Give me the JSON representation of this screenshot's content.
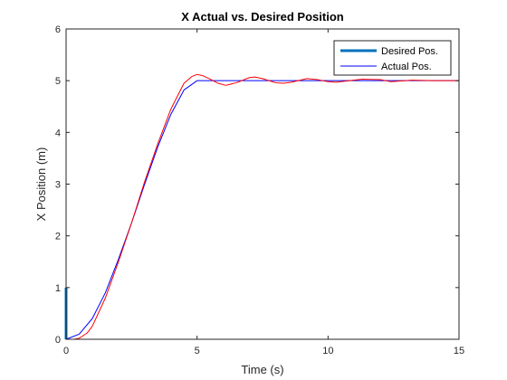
{
  "chart_data": {
    "type": "line",
    "title": "X Actual vs. Desired Position",
    "xlabel": "Time (s)",
    "ylabel": "X Position (m)",
    "xlim": [
      0,
      15
    ],
    "ylim": [
      0,
      6
    ],
    "xticks": [
      0,
      5,
      10,
      15
    ],
    "yticks": [
      0,
      1,
      2,
      3,
      4,
      5,
      6
    ],
    "grid": false,
    "legend_position": "top-right",
    "series": [
      {
        "name": "Desired Pos.",
        "color": "#0072BD",
        "x": [
          0,
          0
        ],
        "y": [
          0,
          1
        ]
      },
      {
        "name": "Actual Pos.",
        "color": "#0000FF",
        "x": [
          0,
          0.5,
          1,
          1.5,
          2,
          2.5,
          3,
          3.5,
          4,
          4.5,
          5,
          6,
          8,
          10,
          12,
          15
        ],
        "y": [
          0,
          0.1,
          0.4,
          0.9,
          1.55,
          2.25,
          3.0,
          3.72,
          4.35,
          4.82,
          5.0,
          5.0,
          5.0,
          5.0,
          5.0,
          5.0
        ]
      },
      {
        "name": "",
        "color": "#FF0000",
        "x": [
          0,
          0.3,
          0.5,
          0.8,
          1.0,
          1.5,
          2.0,
          2.5,
          3.0,
          3.5,
          4.0,
          4.5,
          4.8,
          5.0,
          5.2,
          5.5,
          5.8,
          6.1,
          6.5,
          7.0,
          7.2,
          7.5,
          8.0,
          8.3,
          8.6,
          9.2,
          9.6,
          10.0,
          10.3,
          11.3,
          12.0,
          12.4,
          13.2,
          14.0,
          15.0
        ],
        "y": [
          0,
          0,
          0.02,
          0.12,
          0.25,
          0.8,
          1.5,
          2.25,
          3.05,
          3.78,
          4.45,
          4.95,
          5.08,
          5.12,
          5.1,
          5.03,
          4.95,
          4.91,
          4.96,
          5.06,
          5.07,
          5.04,
          4.96,
          4.95,
          4.97,
          5.04,
          5.02,
          4.98,
          4.97,
          5.03,
          5.02,
          4.98,
          5.01,
          5.0,
          5.0
        ]
      }
    ]
  }
}
